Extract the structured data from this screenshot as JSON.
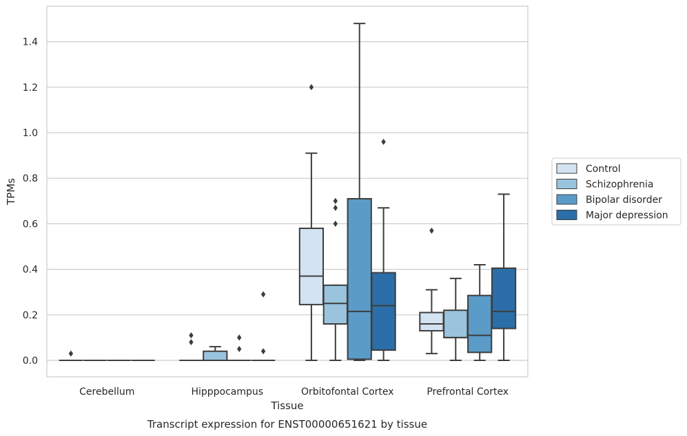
{
  "caption": "Transcript expression for ENST00000651621 by tissue",
  "colors": {
    "plot_background": "#ffffff",
    "grid": "#cccccc",
    "frame": "#cccccc",
    "box_edge": "#3d3d3d"
  },
  "chart_data": {
    "type": "boxplot",
    "title": "",
    "xlabel": "Tissue",
    "ylabel": "TPMs",
    "ylim": [
      -0.07,
      1.55
    ],
    "yticks": [
      0.0,
      0.2,
      0.4,
      0.6,
      0.8,
      1.0,
      1.2,
      1.4
    ],
    "yticklabels": [
      "0.0",
      "0.2",
      "0.4",
      "0.6",
      "0.8",
      "1.0",
      "1.2",
      "1.4"
    ],
    "grid": true,
    "legend_position": "right",
    "categories": [
      "Cerebellum",
      "Hipppocampus",
      "Orbitofontal Cortex",
      "Prefrontal Cortex"
    ],
    "series": [
      {
        "name": "Control",
        "color": "#d3e3f2",
        "boxes": [
          {
            "whislo": 0.0,
            "q1": 0.0,
            "med": 0.0,
            "q3": 0.0,
            "whishi": 0.0,
            "fliers": [
              0.03
            ]
          },
          {
            "whislo": 0.0,
            "q1": 0.0,
            "med": 0.0,
            "q3": 0.0,
            "whishi": 0.0,
            "fliers": [
              0.08,
              0.11
            ]
          },
          {
            "whislo": 0.0,
            "q1": 0.245,
            "med": 0.37,
            "q3": 0.58,
            "whishi": 0.91,
            "fliers": [
              1.2
            ]
          },
          {
            "whislo": 0.03,
            "q1": 0.13,
            "med": 0.16,
            "q3": 0.21,
            "whishi": 0.31,
            "fliers": [
              0.57
            ]
          }
        ]
      },
      {
        "name": "Schizophrenia",
        "color": "#9ac4de",
        "boxes": [
          {
            "whislo": 0.0,
            "q1": 0.0,
            "med": 0.0,
            "q3": 0.0,
            "whishi": 0.0,
            "fliers": []
          },
          {
            "whislo": 0.0,
            "q1": 0.0,
            "med": 0.0,
            "q3": 0.04,
            "whishi": 0.06,
            "fliers": []
          },
          {
            "whislo": 0.0,
            "q1": 0.16,
            "med": 0.25,
            "q3": 0.33,
            "whishi": 0.33,
            "fliers": [
              0.6,
              0.67,
              0.7
            ]
          },
          {
            "whislo": 0.0,
            "q1": 0.1,
            "med": 0.1,
            "q3": 0.22,
            "whishi": 0.36,
            "fliers": []
          }
        ]
      },
      {
        "name": "Bipolar disorder",
        "color": "#5b9bc8",
        "boxes": [
          {
            "whislo": 0.0,
            "q1": 0.0,
            "med": 0.0,
            "q3": 0.0,
            "whishi": 0.0,
            "fliers": []
          },
          {
            "whislo": 0.0,
            "q1": 0.0,
            "med": 0.0,
            "q3": 0.0,
            "whishi": 0.0,
            "fliers": [
              0.05,
              0.1
            ]
          },
          {
            "whislo": 0.0,
            "q1": 0.005,
            "med": 0.215,
            "q3": 0.71,
            "whishi": 1.48,
            "fliers": []
          },
          {
            "whislo": 0.0,
            "q1": 0.035,
            "med": 0.11,
            "q3": 0.285,
            "whishi": 0.42,
            "fliers": []
          }
        ]
      },
      {
        "name": "Major depression",
        "color": "#2b6ea8",
        "boxes": [
          {
            "whislo": 0.0,
            "q1": 0.0,
            "med": 0.0,
            "q3": 0.0,
            "whishi": 0.0,
            "fliers": []
          },
          {
            "whislo": 0.0,
            "q1": 0.0,
            "med": 0.0,
            "q3": 0.0,
            "whishi": 0.0,
            "fliers": [
              0.04,
              0.29
            ]
          },
          {
            "whislo": 0.0,
            "q1": 0.045,
            "med": 0.24,
            "q3": 0.385,
            "whishi": 0.67,
            "fliers": [
              0.96
            ]
          },
          {
            "whislo": 0.0,
            "q1": 0.14,
            "med": 0.215,
            "q3": 0.405,
            "whishi": 0.73,
            "fliers": []
          }
        ]
      }
    ]
  }
}
